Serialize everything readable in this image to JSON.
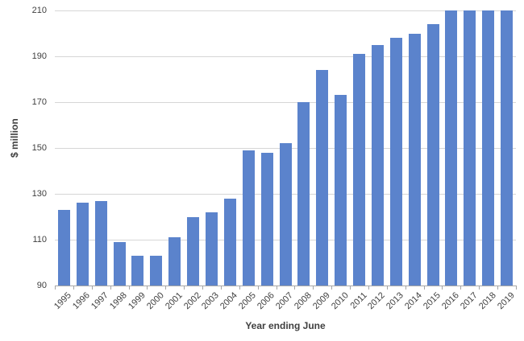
{
  "chart_data": {
    "type": "bar",
    "title": "",
    "xlabel": "Year ending June",
    "ylabel": "$ million",
    "categories": [
      "1995",
      "1996",
      "1997",
      "1998",
      "1999",
      "2000",
      "2001",
      "2002",
      "2003",
      "2004",
      "2005",
      "2006",
      "2007",
      "2008",
      "2009",
      "2010",
      "2011",
      "2012",
      "2013",
      "2014",
      "2015",
      "2016",
      "2017",
      "2018",
      "2019"
    ],
    "values": [
      123,
      126,
      127,
      109,
      103,
      103,
      111,
      120,
      122,
      128,
      149,
      148,
      152,
      170,
      184,
      173,
      191,
      195,
      198,
      200,
      204,
      210,
      210,
      210,
      210
    ],
    "ylim": [
      90,
      210
    ],
    "yticks": [
      90,
      110,
      130,
      150,
      170,
      190,
      210
    ],
    "grid": "horizontal",
    "legend_position": "none",
    "bar_color": "#5B83CC",
    "gridline_color": "#D6D6D6",
    "axis_color": "#A6A6A6",
    "label_color": "#404040"
  }
}
